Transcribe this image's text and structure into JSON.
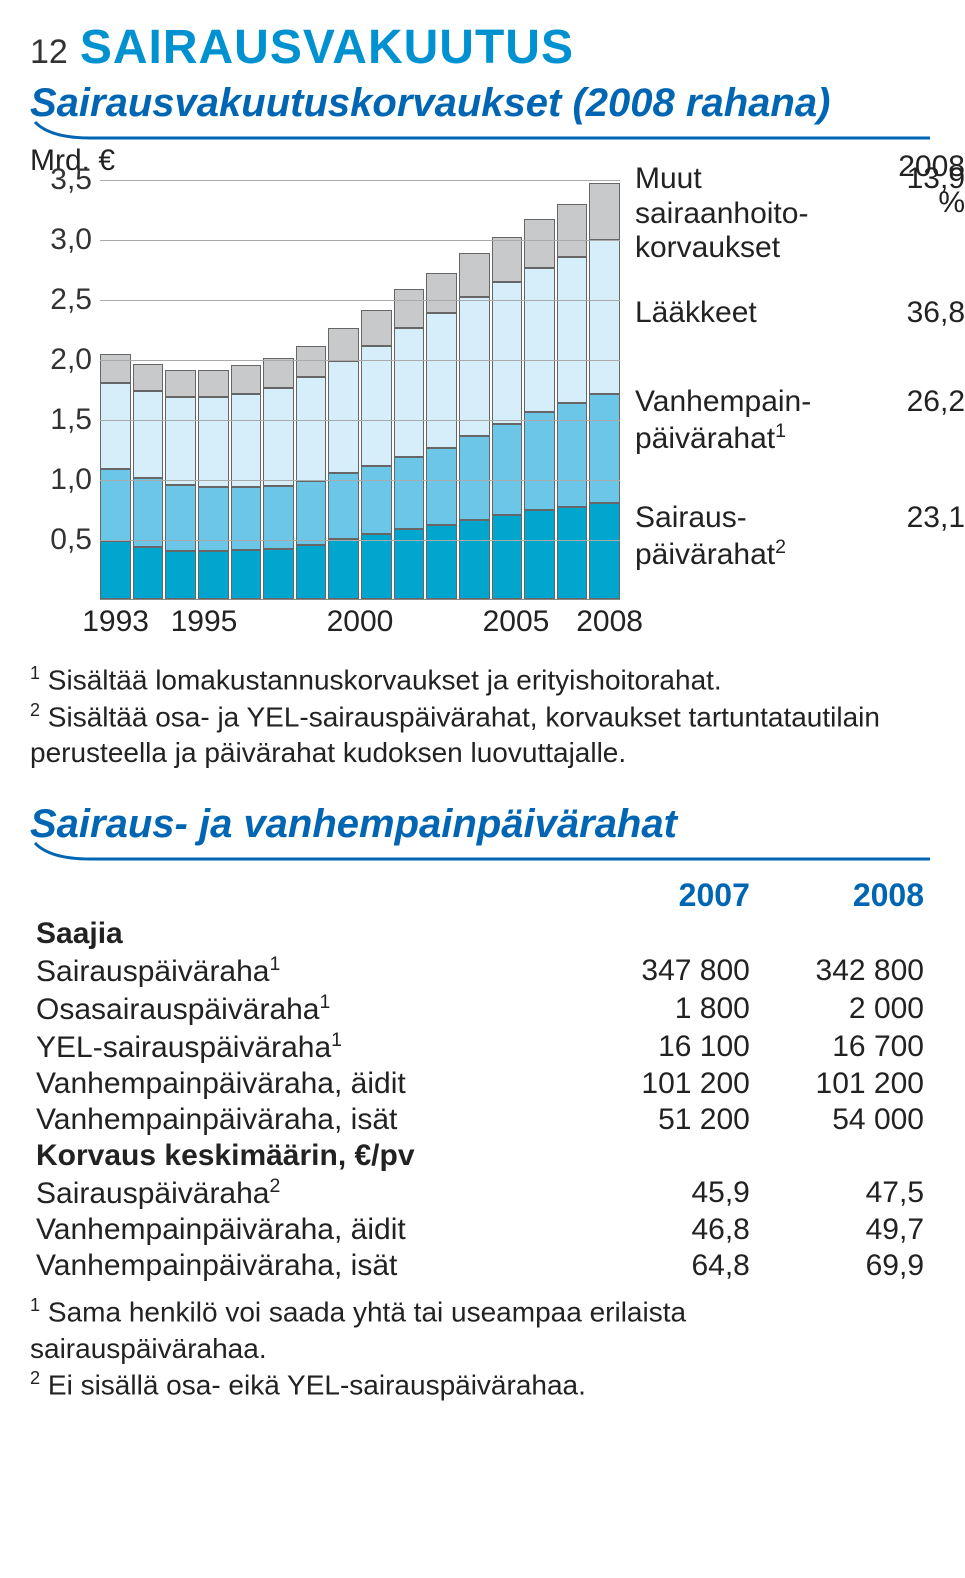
{
  "pageNumber": "12",
  "mainTitle": "SAIRAUSVAKUUTUS",
  "mainTitleColor": "#0091d0",
  "chartSection": {
    "title": "Sairausvakuutuskorvaukset (2008 rahana)",
    "titleColor": "#0066b3",
    "yUnit": "Mrd. €",
    "yTicks": [
      "0,5",
      "1,0",
      "1,5",
      "2,0",
      "2,5",
      "3,0",
      "3,5"
    ],
    "yMax": 3.5,
    "xLabels": [
      {
        "label": "1993",
        "posPct": 3
      },
      {
        "label": "1995",
        "posPct": 20
      },
      {
        "label": "2000",
        "posPct": 50
      },
      {
        "label": "2005",
        "posPct": 80
      },
      {
        "label": "2008",
        "posPct": 98
      }
    ],
    "colors": {
      "sairaus": "#00a6ce",
      "vanhempain": "#6cc6e8",
      "laakkeet": "#d6eef9",
      "muut": "#c8c9cb",
      "grid": "#aaaaaa",
      "border": "#666666"
    },
    "bars": [
      {
        "s": 0.48,
        "v": 0.6,
        "l": 0.72,
        "m": 0.24
      },
      {
        "s": 0.43,
        "v": 0.58,
        "l": 0.72,
        "m": 0.23
      },
      {
        "s": 0.4,
        "v": 0.55,
        "l": 0.73,
        "m": 0.23
      },
      {
        "s": 0.4,
        "v": 0.53,
        "l": 0.75,
        "m": 0.23
      },
      {
        "s": 0.41,
        "v": 0.52,
        "l": 0.78,
        "m": 0.24
      },
      {
        "s": 0.42,
        "v": 0.52,
        "l": 0.82,
        "m": 0.25
      },
      {
        "s": 0.45,
        "v": 0.53,
        "l": 0.87,
        "m": 0.26
      },
      {
        "s": 0.5,
        "v": 0.55,
        "l": 0.93,
        "m": 0.28
      },
      {
        "s": 0.54,
        "v": 0.57,
        "l": 1.0,
        "m": 0.3
      },
      {
        "s": 0.58,
        "v": 0.6,
        "l": 1.08,
        "m": 0.32
      },
      {
        "s": 0.62,
        "v": 0.64,
        "l": 1.12,
        "m": 0.34
      },
      {
        "s": 0.66,
        "v": 0.7,
        "l": 1.16,
        "m": 0.36
      },
      {
        "s": 0.7,
        "v": 0.76,
        "l": 1.18,
        "m": 0.38
      },
      {
        "s": 0.74,
        "v": 0.82,
        "l": 1.2,
        "m": 0.41
      },
      {
        "s": 0.77,
        "v": 0.86,
        "l": 1.22,
        "m": 0.44
      },
      {
        "s": 0.8,
        "v": 0.91,
        "l": 1.28,
        "m": 0.48
      }
    ],
    "legendHeader": {
      "year": "2008",
      "unit": "%"
    },
    "legend": [
      {
        "label": "Muut\nsairaanhoito-\nkorvaukset",
        "value": "13,9"
      },
      {
        "label": "Lääkkeet",
        "value": "36,8"
      },
      {
        "label": "Vanhempain-\npäivärahat¹",
        "value": "26,2"
      },
      {
        "label": "Sairaus-\npäivärahat²",
        "value": "23,1"
      }
    ],
    "footnote1": "Sisältää lomakustannuskorvaukset ja erityishoitorahat.",
    "footnote2": "Sisältää osa- ja YEL-sairauspäivärahat, korvaukset tartuntatautilain perusteella ja päivärahat kudoksen luovuttajalle."
  },
  "tableSection": {
    "title": "Sairaus- ja vanhempainpäivärahat",
    "titleColor": "#0066b3",
    "headers": [
      "2007",
      "2008"
    ],
    "groupSaajia": "Saajia",
    "rowsSaajia": [
      {
        "label": "Sairauspäiväraha¹",
        "c1": "347 800",
        "c2": "342 800"
      },
      {
        "label": "Osasairauspäiväraha¹",
        "c1": "1 800",
        "c2": "2 000"
      },
      {
        "label": "YEL-sairauspäiväraha¹",
        "c1": "16 100",
        "c2": "16 700"
      },
      {
        "label": "Vanhempainpäiväraha, äidit",
        "c1": "101 200",
        "c2": "101 200"
      },
      {
        "label": "Vanhempainpäiväraha, isät",
        "c1": "51 200",
        "c2": "54 000"
      }
    ],
    "groupKorvaus": "Korvaus keskimäärin, €/pv",
    "rowsKorvaus": [
      {
        "label": "Sairauspäiväraha²",
        "c1": "45,9",
        "c2": "47,5"
      },
      {
        "label": "Vanhempainpäiväraha, äidit",
        "c1": "46,8",
        "c2": "49,7"
      },
      {
        "label": "Vanhempainpäiväraha, isät",
        "c1": "64,8",
        "c2": "69,9"
      }
    ],
    "footnote1": "Sama henkilö voi saada yhtä tai useampaa erilaista sairauspäivärahaa.",
    "footnote2": "Ei sisällä osa- eikä YEL-sairauspäivärahaa."
  }
}
